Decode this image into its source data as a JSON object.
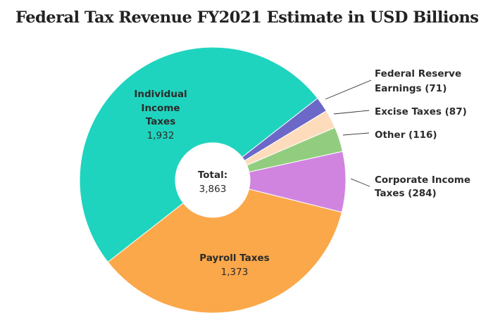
{
  "chart_data": {
    "type": "pie",
    "donut": true,
    "title": "Federal Tax Revenue FY2021 Estimate in USD Billions",
    "center_label": "Total:",
    "total": "3,863",
    "slices": [
      {
        "name": "Federal Reserve Earnings",
        "value": 71,
        "label_lines": [
          "Federal Reserve",
          "Earnings (71)"
        ],
        "color": "#6b68c8"
      },
      {
        "name": "Excise Taxes",
        "value": 87,
        "label_lines": [
          "Excise Taxes (87)"
        ],
        "color": "#fddcbc"
      },
      {
        "name": "Other",
        "value": 116,
        "label_lines": [
          "Other (116)"
        ],
        "color": "#92cd7f"
      },
      {
        "name": "Corporate Income Taxes",
        "value": 284,
        "label_lines": [
          "Corporate Income",
          "Taxes (284)"
        ],
        "color": "#d084df"
      },
      {
        "name": "Payroll Taxes",
        "value": 1373,
        "label_lines": [
          "Payroll Taxes",
          "1,373"
        ],
        "color": "#fba84a"
      },
      {
        "name": "Individual Income Taxes",
        "value": 1932,
        "label_lines": [
          "Individual",
          "Income",
          "Taxes",
          "1,932"
        ],
        "color": "#1fd4be"
      }
    ]
  }
}
